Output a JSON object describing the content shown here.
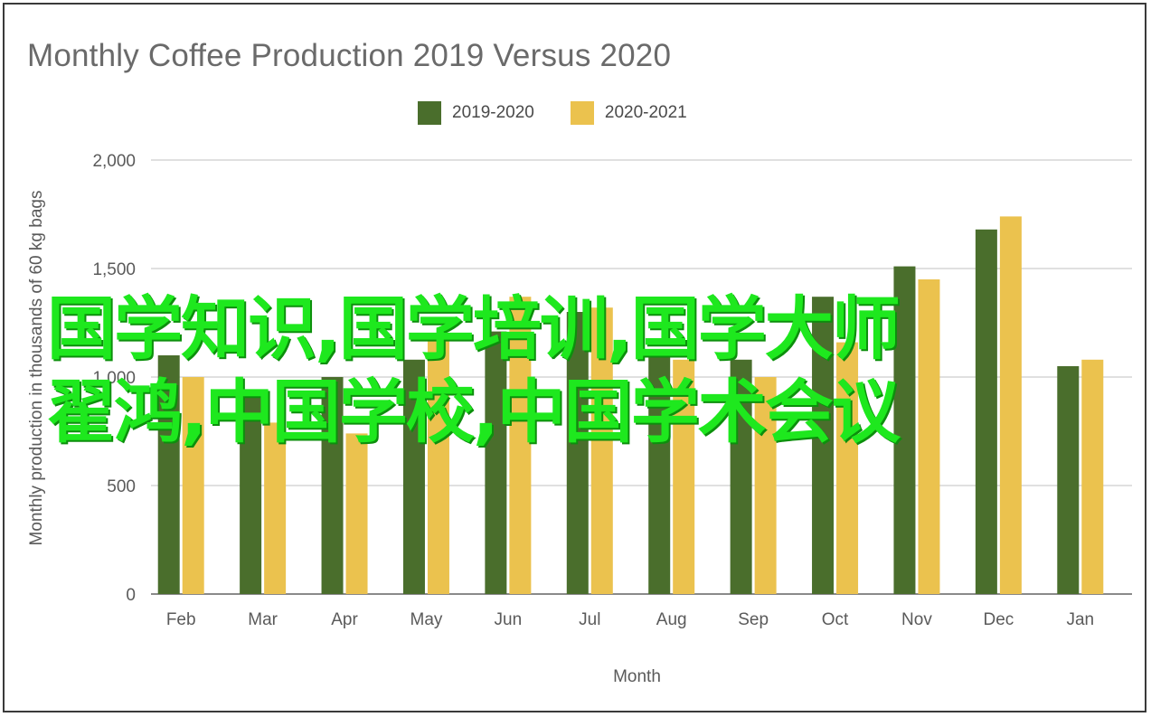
{
  "chart_data": {
    "type": "bar",
    "title": "Monthly Coffee Production 2019 Versus 2020",
    "xlabel": "Month",
    "ylabel": "Monthly production in thousands of 60 kg bags",
    "categories": [
      "Feb",
      "Mar",
      "Apr",
      "May",
      "Jun",
      "Jul",
      "Aug",
      "Sep",
      "Oct",
      "Nov",
      "Dec",
      "Jan"
    ],
    "series": [
      {
        "name": "2019-2020",
        "color": "#4a6e2c",
        "values": [
          1100,
          920,
          1000,
          1080,
          1210,
          1300,
          1120,
          1080,
          1370,
          1510,
          1680,
          1050
        ]
      },
      {
        "name": "2020-2021",
        "color": "#ebc24e",
        "values": [
          1000,
          790,
          740,
          1180,
          1370,
          1320,
          1080,
          1000,
          1160,
          1450,
          1740,
          1080
        ]
      }
    ],
    "ylim": [
      0,
      2000
    ],
    "yticks": [
      "0",
      "500",
      "1,000",
      "1,500",
      "2,000"
    ],
    "ytick_values": [
      0,
      500,
      1000,
      1500,
      2000
    ],
    "grid": true,
    "legend_position": "top-center"
  },
  "overlay": {
    "line1": "国学知识,国学培训,国学大师",
    "line2": "翟鸿,中国学校,中国学术会议"
  }
}
